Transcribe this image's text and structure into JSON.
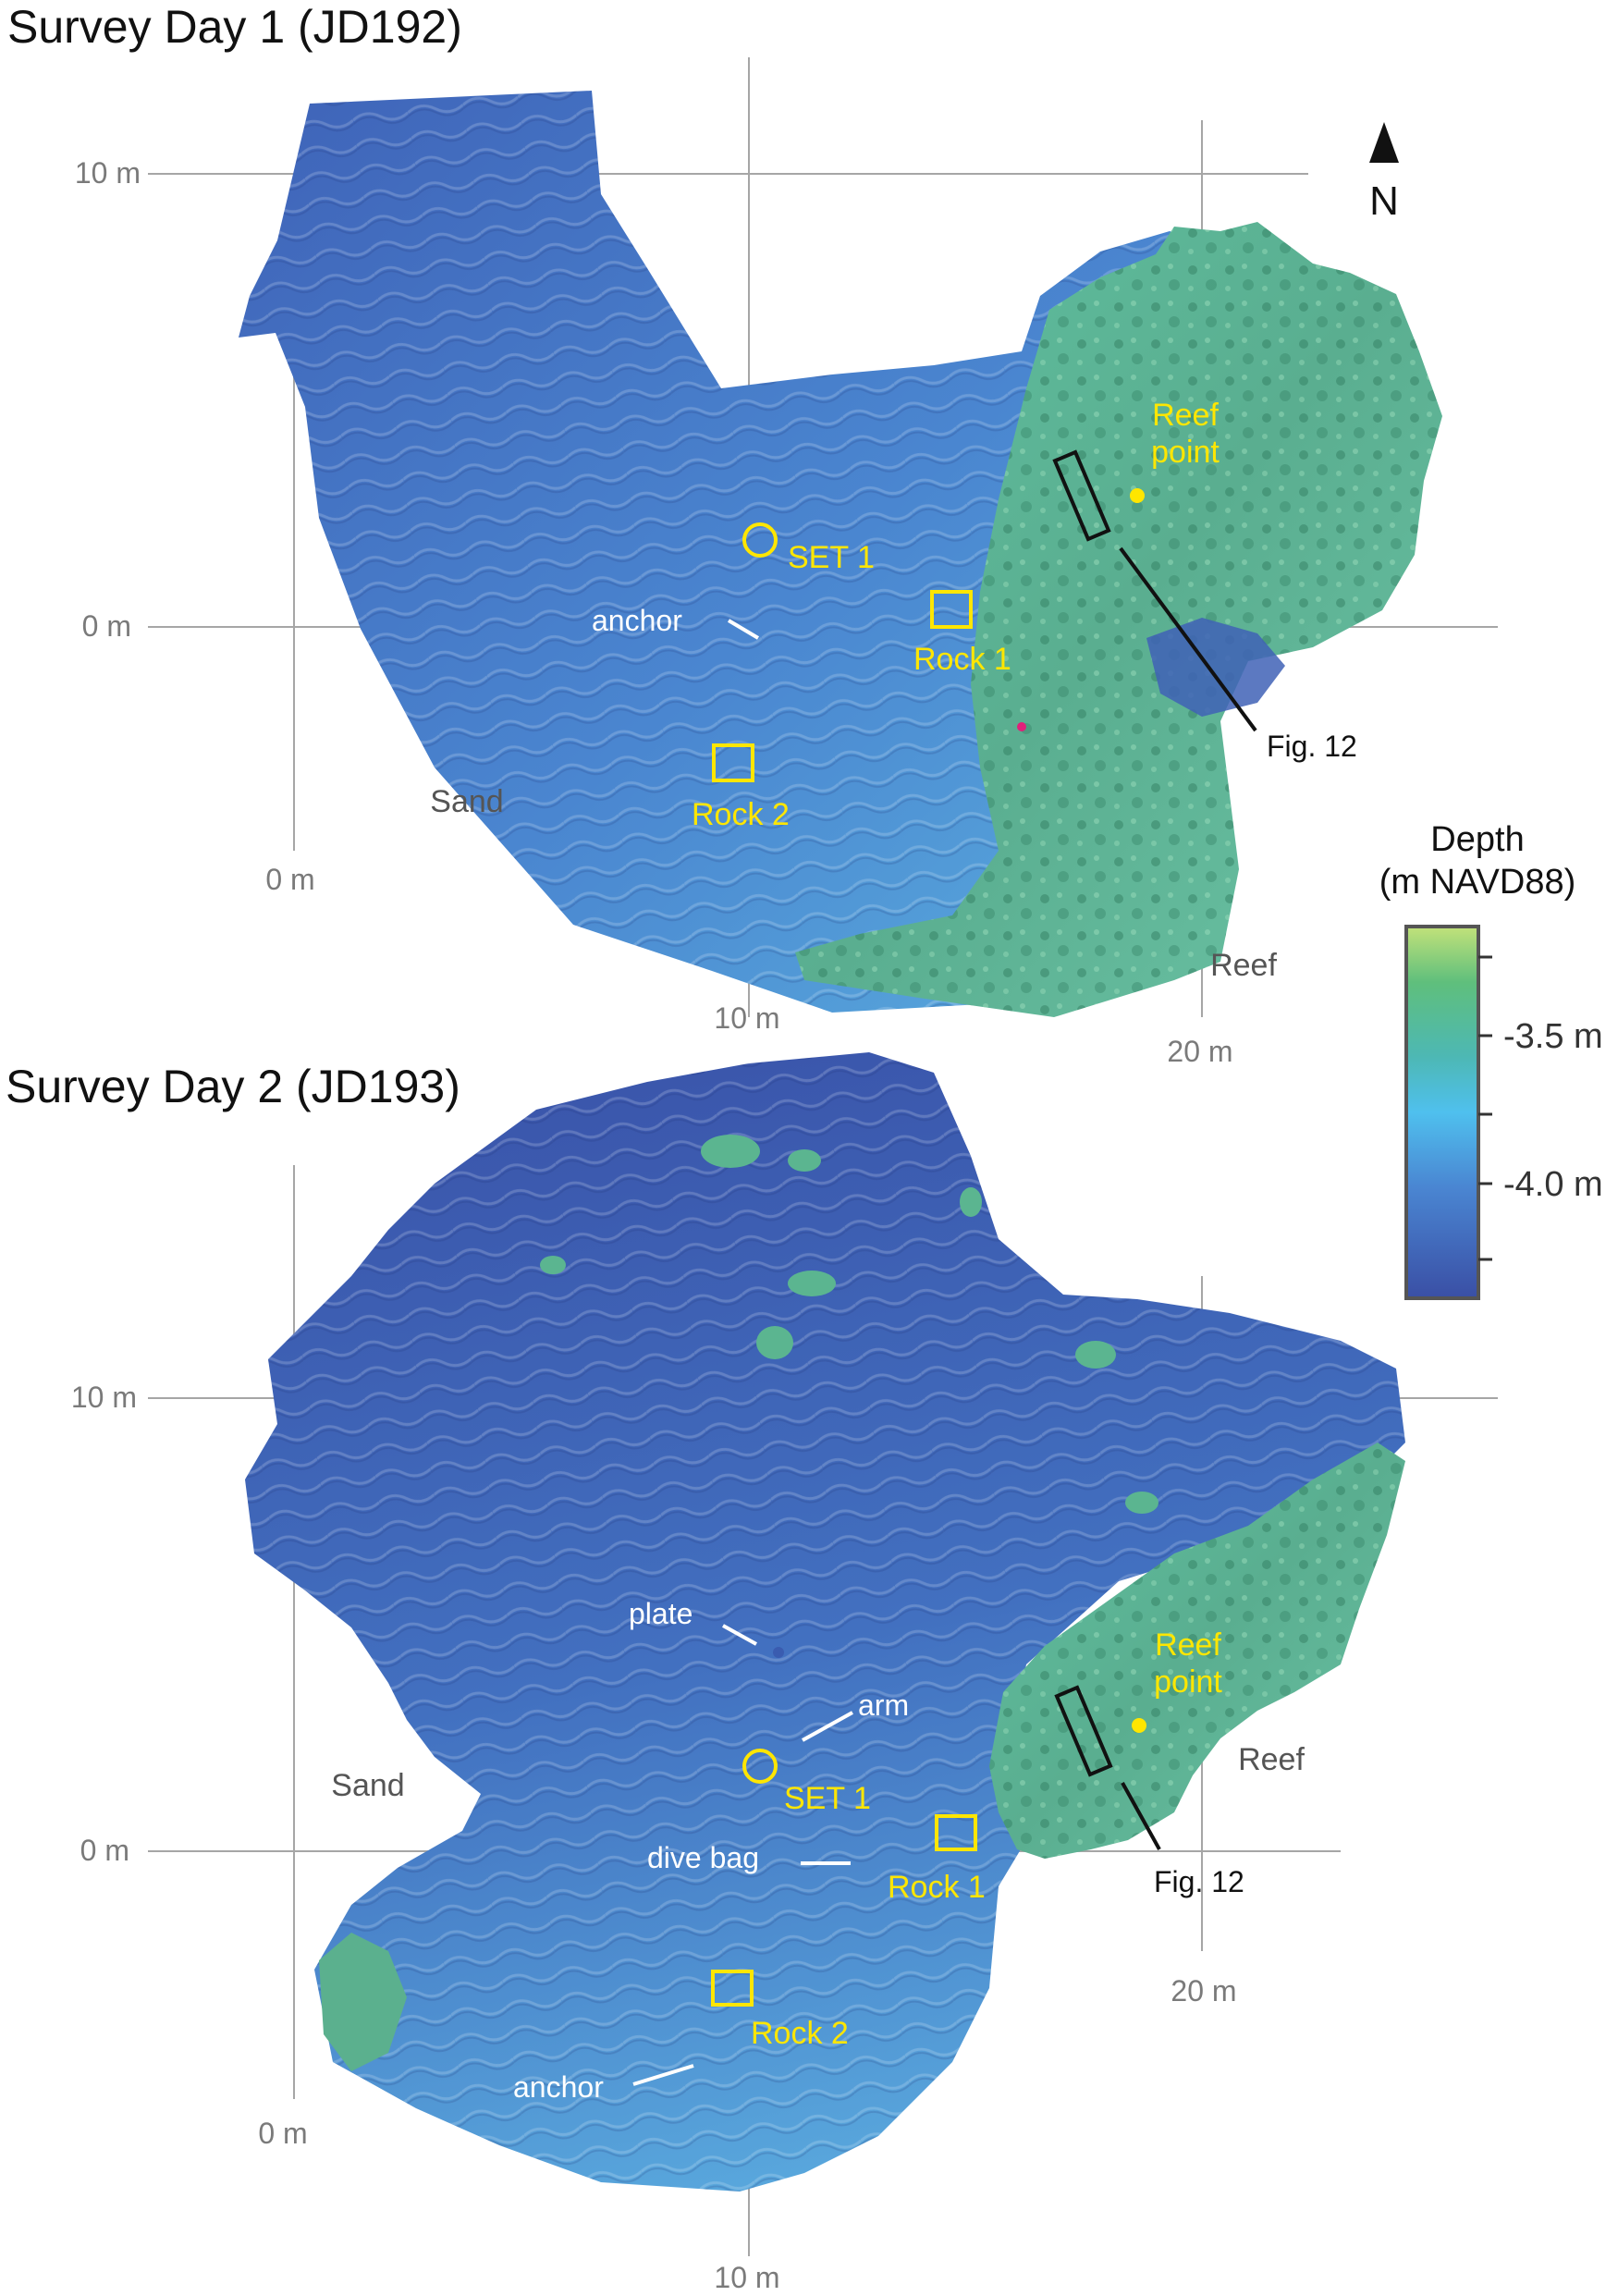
{
  "panels": [
    {
      "title": "Survey Day 1 (JD192)",
      "y_ticks": [
        "10 m",
        "0 m"
      ],
      "x_ticks": [
        "0 m",
        "10 m",
        "20 m"
      ],
      "areas": {
        "sand": "Sand",
        "reef": "Reef"
      },
      "markers": {
        "set1": "SET 1",
        "rock1": "Rock 1",
        "rock2": "Rock 2",
        "reef_point": [
          "Reef",
          "point"
        ]
      },
      "annotations": {
        "anchor": "anchor",
        "figure_ref": "Fig. 12"
      }
    },
    {
      "title": "Survey Day 2 (JD193)",
      "y_ticks": [
        "10 m",
        "0 m"
      ],
      "x_ticks": [
        "0 m",
        "10 m",
        "20 m"
      ],
      "areas": {
        "sand": "Sand",
        "reef": "Reef"
      },
      "markers": {
        "set1": "SET 1",
        "rock1": "Rock 1",
        "rock2": "Rock 2",
        "reef_point": [
          "Reef",
          "point"
        ]
      },
      "annotations": {
        "plate": "plate",
        "arm": "arm",
        "dive_bag": "dive bag",
        "anchor": "anchor",
        "figure_ref": "Fig. 12"
      }
    }
  ],
  "north_arrow": {
    "label": "N"
  },
  "legend": {
    "title_line1": "Depth",
    "title_line2": "(m NAVD88)",
    "ticks": [
      "-3.5 m",
      "-4.0 m"
    ],
    "colors": {
      "shallow": "#c2e27a",
      "mid_green": "#5fbf8c",
      "teal": "#4db8b4",
      "light_blue": "#4fc0ee",
      "deep": "#3a4fa5"
    }
  },
  "colors": {
    "marker_yellow": "#ffe600",
    "grid": "#a6a6a6",
    "sand_surface": "#4a7cc8",
    "reef_surface": "#5bb89a"
  }
}
